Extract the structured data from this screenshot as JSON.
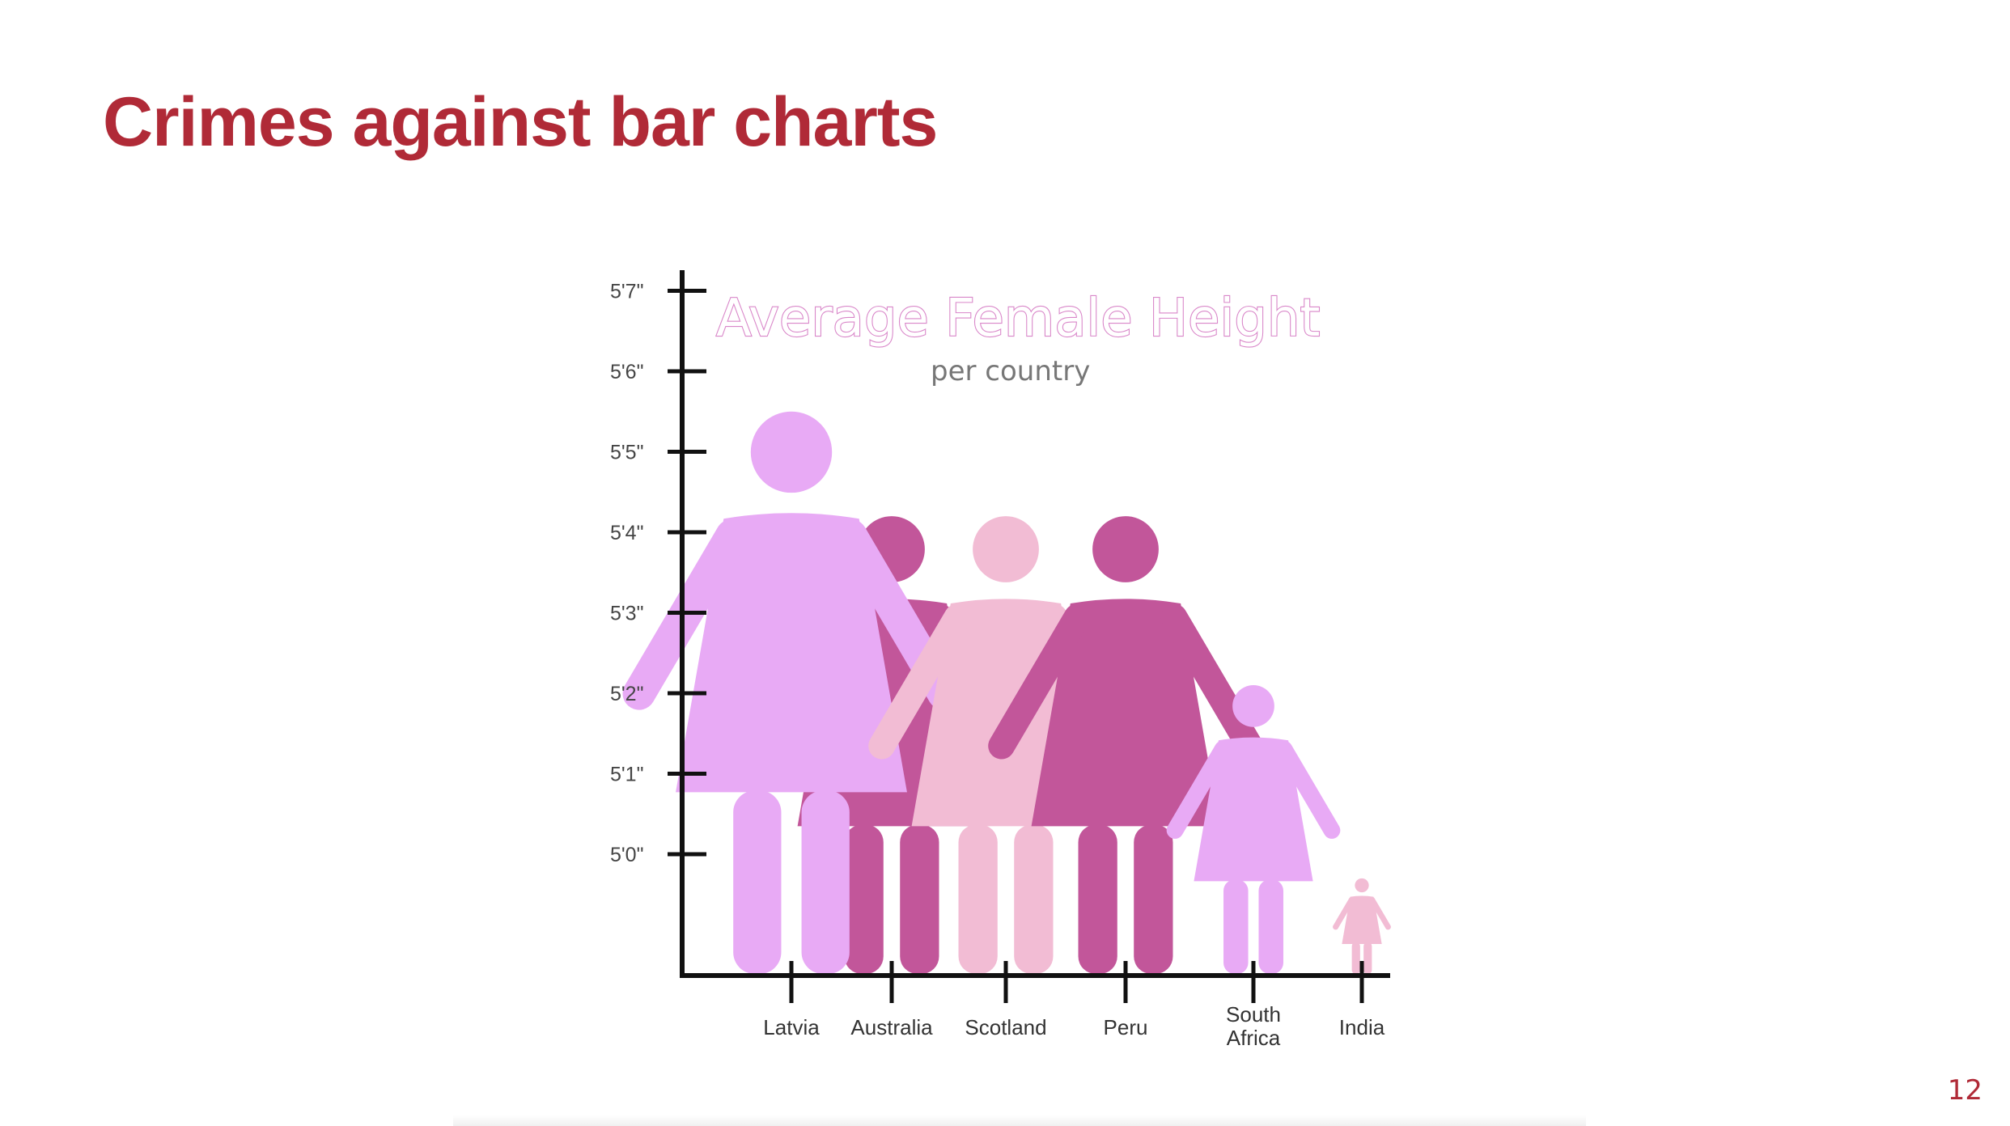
{
  "slide": {
    "title": "Crimes against bar charts",
    "page_number": "12"
  },
  "chart_data": {
    "type": "bar",
    "title": "Average Female Height",
    "subtitle": "per country",
    "xlabel": "",
    "ylabel": "",
    "categories": [
      "Latvia",
      "Australia",
      "Scotland",
      "Peru",
      "South Africa",
      "India"
    ],
    "category_label_lines": [
      [
        "Latvia"
      ],
      [
        "Australia"
      ],
      [
        "Scotland"
      ],
      [
        "Peru"
      ],
      [
        "South",
        "Africa"
      ],
      [
        "India"
      ]
    ],
    "values_inches": [
      65.5,
      64.2,
      64.2,
      64.2,
      62.1,
      59.7
    ],
    "y_ticks": [
      {
        "value": 60,
        "label": "5'0\""
      },
      {
        "value": 61,
        "label": "5'1\""
      },
      {
        "value": 62,
        "label": "5'2\""
      },
      {
        "value": 63,
        "label": "5'3\""
      },
      {
        "value": 64,
        "label": "5'4\""
      },
      {
        "value": 65,
        "label": "5'5\""
      },
      {
        "value": 66,
        "label": "5'6\""
      },
      {
        "value": 67,
        "label": "5'7\""
      }
    ],
    "colors": [
      "#e8aaf5",
      "#c2569a",
      "#f2bcd4",
      "#c2569a",
      "#e8aaf5",
      "#f2bcd4"
    ],
    "mark_style": "female-pictogram",
    "grid": false
  }
}
